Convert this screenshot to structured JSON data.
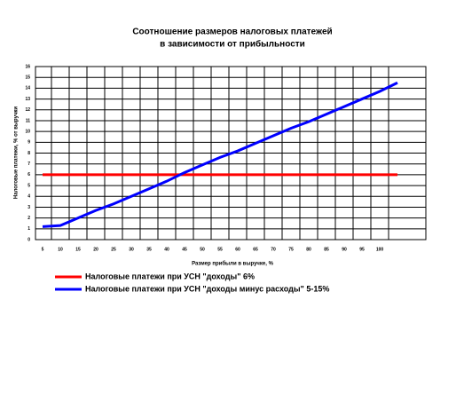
{
  "chart_data": {
    "type": "line",
    "title": [
      "Соотношение размеров налоговых платежей",
      "в зависимости от прибыльности"
    ],
    "x_label": "Размер прибыли в выручке, %",
    "y_label": "Налоговые платежи, % от выручки",
    "x": [
      5,
      10,
      15,
      20,
      25,
      30,
      35,
      40,
      45,
      50,
      55,
      60,
      65,
      70,
      75,
      80,
      85,
      90,
      95,
      100,
      105
    ],
    "series": [
      {
        "name": "Налоговые платежи при УСН \"доходы\" 6%",
        "color": "#ff0000",
        "values": [
          6,
          6,
          6,
          6,
          6,
          6,
          6,
          6,
          6,
          6,
          6,
          6,
          6,
          6,
          6,
          6,
          6,
          6,
          6,
          6,
          6
        ]
      },
      {
        "name": "Налоговые платежи при УСН \"доходы минус расходы\" 5-15%",
        "color": "#0000ff",
        "values": [
          1.2,
          1.3,
          2.0,
          2.7,
          3.3,
          4.0,
          4.7,
          5.4,
          6.2,
          6.9,
          7.6,
          8.2,
          8.9,
          9.6,
          10.3,
          10.9,
          11.6,
          12.3,
          13.0,
          13.7,
          14.5
        ]
      }
    ],
    "xlim": [
      3,
      113
    ],
    "xticks": [
      5,
      10,
      15,
      20,
      25,
      30,
      35,
      40,
      45,
      50,
      55,
      60,
      65,
      70,
      75,
      80,
      85,
      90,
      95,
      100
    ],
    "ylim": [
      0,
      16
    ],
    "yticks": [
      0,
      1,
      2,
      3,
      4,
      5,
      6,
      7,
      8,
      9,
      10,
      11,
      12,
      13,
      14,
      15,
      16
    ],
    "grid": true
  }
}
